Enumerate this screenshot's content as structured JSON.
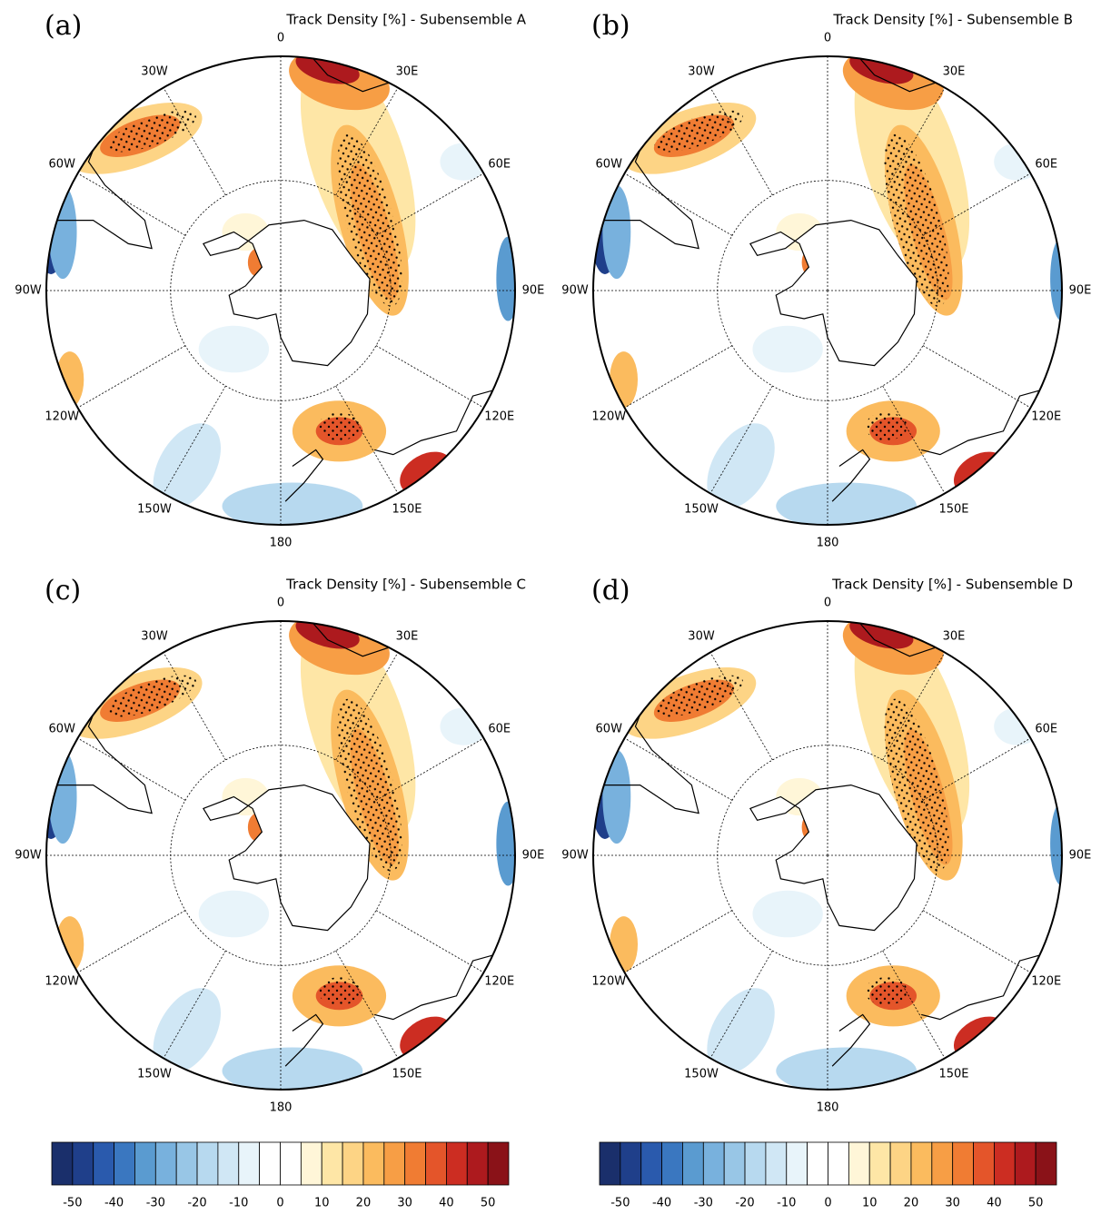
{
  "panels": [
    {
      "label": "(a)",
      "title": "Track Density [%] - Subensemble A"
    },
    {
      "label": "(b)",
      "title": "Track Density [%] - Subensemble B"
    },
    {
      "label": "(c)",
      "title": "Track Density [%] - Subensemble C"
    },
    {
      "label": "(d)",
      "title": "Track Density [%] - Subensemble D"
    }
  ],
  "longitude_labels": [
    "0",
    "30E",
    "60E",
    "90E",
    "120E",
    "150E",
    "180",
    "150W",
    "120W",
    "90W",
    "60W",
    "30W"
  ],
  "colorbar": {
    "lim": [
      -55,
      55
    ],
    "ticks": [
      -50,
      -40,
      -30,
      -20,
      -10,
      0,
      10,
      20,
      30,
      40,
      50
    ],
    "colors": [
      "#1a2f6b",
      "#1f3f8a",
      "#2a5aad",
      "#3a77c0",
      "#5a9bd0",
      "#78b1dd",
      "#98c6e6",
      "#b7d9ef",
      "#d0e7f5",
      "#e8f4fa",
      "#ffffff",
      "#ffffff",
      "#fff6d8",
      "#fee6a6",
      "#fdd485",
      "#fbbb5e",
      "#f79e45",
      "#f07c33",
      "#e4552a",
      "#cc2d22",
      "#ad1a1e",
      "#8a1218"
    ]
  }
}
